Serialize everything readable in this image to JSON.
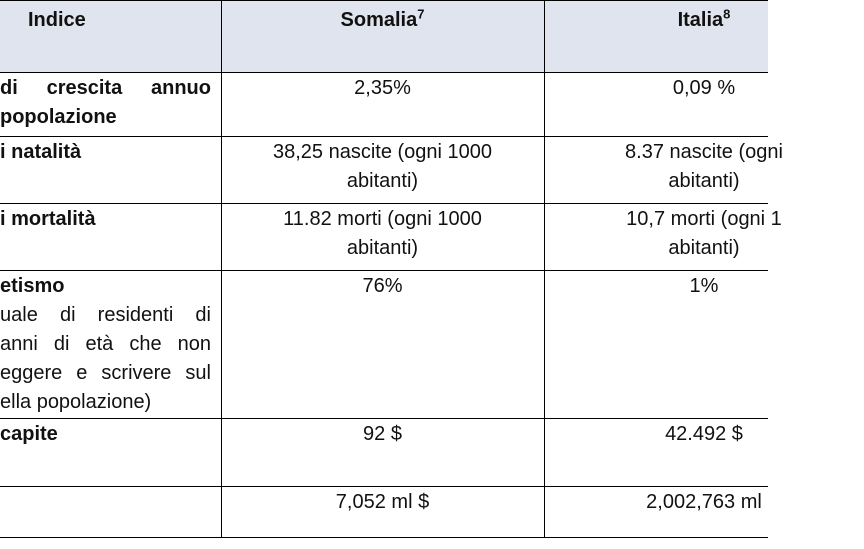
{
  "header": {
    "index": "Indice",
    "somalia": "Somalia",
    "somalia_note": "7",
    "italia": "Italia",
    "italia_note": "8"
  },
  "rows": [
    {
      "label": [
        "di crescita annuo",
        "popolazione"
      ],
      "somalia": [
        "2,35%"
      ],
      "italia": [
        "0,09 %"
      ]
    },
    {
      "label": [
        "i natalità"
      ],
      "somalia": [
        "38,25 nascite (ogni 1000",
        "abitanti)"
      ],
      "italia": [
        "8.37 nascite (ogni",
        "abitanti)"
      ]
    },
    {
      "label": [
        "i mortalità"
      ],
      "somalia": [
        "11.82 morti (ogni 1000",
        "abitanti)"
      ],
      "italia": [
        "10,7 morti (ogni 1",
        "abitanti)"
      ]
    },
    {
      "label": [
        "etismo"
      ],
      "note": [
        "uale di residenti di",
        "anni di età che non",
        "eggere e scrivere sul",
        "ella popolazione)"
      ],
      "somalia": [
        "76%"
      ],
      "italia": [
        "1%"
      ]
    },
    {
      "label": [
        "capite"
      ],
      "somalia": [
        "92 $"
      ],
      "italia": [
        "42.492 $"
      ]
    },
    {
      "label": [],
      "somalia": [
        "7,052 ml $"
      ],
      "italia": [
        "2,002,763 ml"
      ]
    }
  ]
}
